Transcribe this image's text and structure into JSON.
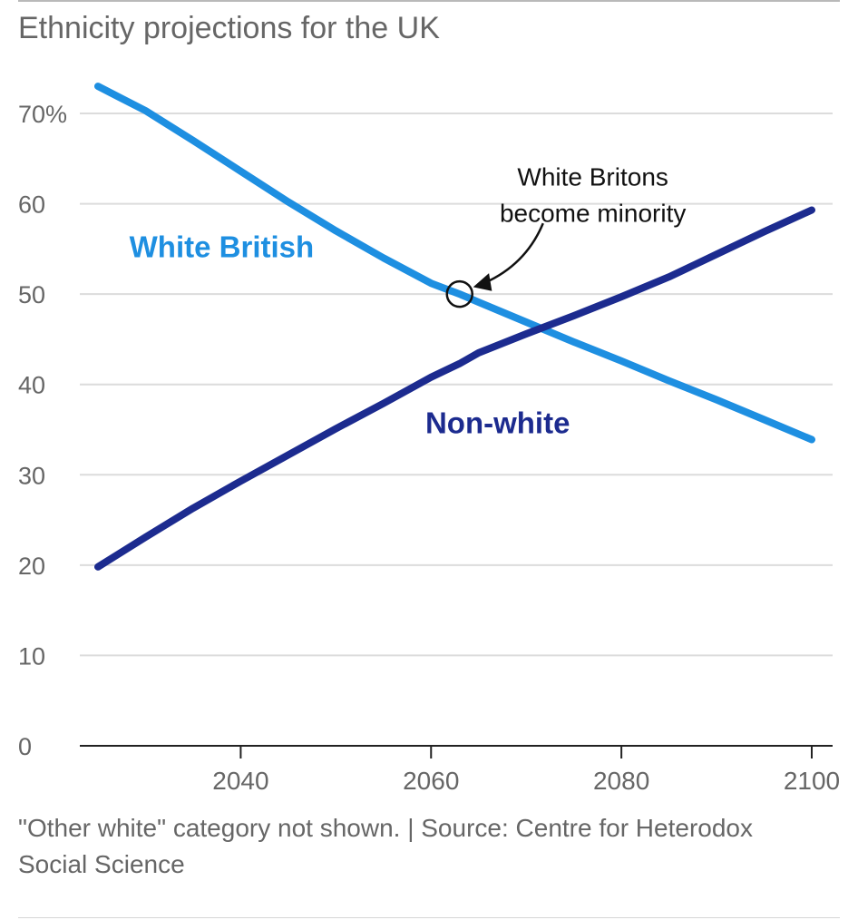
{
  "title": "Ethnicity projections for the UK",
  "note": "\"Other white\" category not shown. | Source: Centre for Heterodox Social Science",
  "colors": {
    "white_british": "#1e8fe1",
    "non_white": "#1c2b8f",
    "grid": "#dcdcdc",
    "axis": "#222222",
    "tick_text": "#666666",
    "annotation_text": "#111111"
  },
  "chart_data": {
    "type": "line",
    "title": "Ethnicity projections for the UK",
    "xlim": [
      2025,
      2100
    ],
    "ylim": [
      0,
      70
    ],
    "grid": true,
    "y_ticks": [
      0,
      10,
      20,
      30,
      40,
      50,
      60,
      70
    ],
    "y_tick_labels": [
      "0",
      "10",
      "20",
      "30",
      "40",
      "50",
      "60",
      "70%"
    ],
    "x_ticks": [
      2040,
      2060,
      2080,
      2100
    ],
    "x_tick_labels": [
      "2040",
      "2060",
      "2080",
      "2100"
    ],
    "series": [
      {
        "name": "White British",
        "color": "#1e8fe1",
        "x": [
          2025,
          2030,
          2035,
          2040,
          2045,
          2050,
          2055,
          2060,
          2063,
          2065,
          2070,
          2075,
          2080,
          2085,
          2090,
          2095,
          2100
        ],
        "values": [
          73,
          70.3,
          67,
          63.6,
          60.2,
          57,
          54,
          51.2,
          50,
          49.1,
          46.9,
          44.7,
          42.6,
          40.4,
          38.3,
          36.1,
          33.9
        ]
      },
      {
        "name": "Non-white",
        "color": "#1c2b8f",
        "x": [
          2025,
          2030,
          2035,
          2040,
          2045,
          2050,
          2055,
          2060,
          2063,
          2065,
          2070,
          2075,
          2080,
          2085,
          2090,
          2095,
          2100
        ],
        "values": [
          19.8,
          23.1,
          26.3,
          29.3,
          32.2,
          35.1,
          37.9,
          40.8,
          42.3,
          43.5,
          45.6,
          47.6,
          49.7,
          51.9,
          54.4,
          56.9,
          59.3
        ]
      }
    ],
    "labels": [
      {
        "series": "White British",
        "text": "White British",
        "x": 2038,
        "y": 54.1
      },
      {
        "series": "Non-white",
        "text": "Non-white",
        "x": 2067,
        "y": 34.6
      }
    ],
    "annotation": {
      "text_lines": [
        "White Britons",
        "become minority"
      ],
      "point": {
        "x": 2063,
        "y": 50
      },
      "text_anchor": {
        "x": 2077,
        "y": 62
      }
    }
  }
}
